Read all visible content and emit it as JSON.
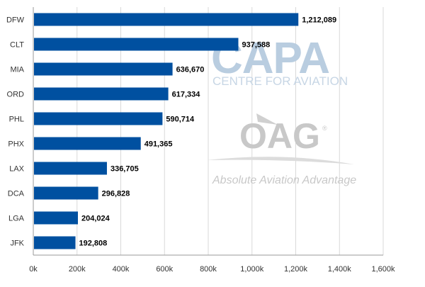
{
  "chart_data": {
    "type": "bar",
    "orientation": "horizontal",
    "categories": [
      "DFW",
      "CLT",
      "MIA",
      "ORD",
      "PHL",
      "PHX",
      "LAX",
      "DCA",
      "LGA",
      "JFK"
    ],
    "values": [
      1212089,
      937588,
      636670,
      617334,
      590714,
      491365,
      336705,
      296828,
      204024,
      192808
    ],
    "data_labels": [
      "1,212,089",
      "937,588",
      "636,670",
      "617,334",
      "590,714",
      "491,365",
      "336,705",
      "296,828",
      "204,024",
      "192,808"
    ],
    "x_ticks": [
      0,
      200000,
      400000,
      600000,
      800000,
      1000000,
      1200000,
      1400000,
      1600000
    ],
    "x_tick_labels": [
      "0k",
      "200k",
      "400k",
      "600k",
      "800k",
      "1,000k",
      "1,200k",
      "1,400k",
      "1,600k"
    ],
    "xlim": [
      0,
      1600000
    ],
    "title": "",
    "xlabel": "",
    "ylabel": "",
    "grid": "vertical",
    "legend": "none",
    "bar_color": "#0050a0"
  },
  "watermarks": {
    "capa": "CAPA",
    "capa_sub": "CENTRE FOR AVIATION",
    "oag": "OAG",
    "oag_tagline": "Absolute Aviation Advantage"
  }
}
